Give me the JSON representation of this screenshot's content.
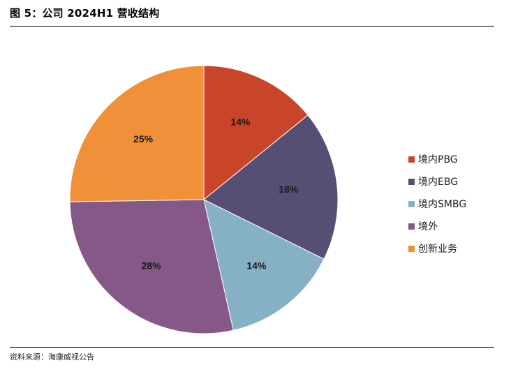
{
  "figure": {
    "title": "图 5：公司 2024H1 营收结构",
    "source": "资料来源：海康威视公告"
  },
  "chart_data": {
    "type": "pie",
    "categories": [
      "境内PBG",
      "境内EBG",
      "境内SMBG",
      "境外",
      "创新业务"
    ],
    "values": [
      14,
      18,
      14,
      28,
      25
    ],
    "labels": [
      "14%",
      "18%",
      "14%",
      "28%",
      "25%"
    ],
    "colors": [
      "#C9452A",
      "#574E73",
      "#86B0C4",
      "#855888",
      "#F0913A"
    ],
    "start_angle_deg": 0,
    "direction": "clockwise",
    "legend_position": "right"
  }
}
